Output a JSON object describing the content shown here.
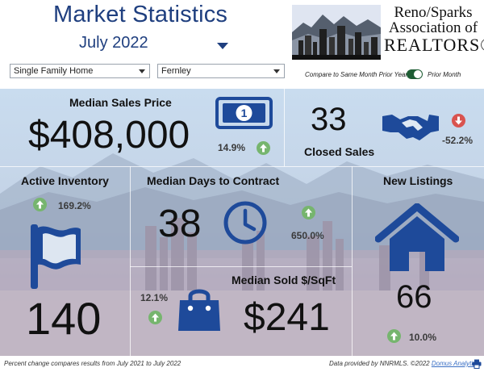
{
  "header": {
    "title": "Market Statistics",
    "month": "July 2022",
    "logo": {
      "line1": "Reno/Sparks",
      "line2": "Association of",
      "line3": "REALTORS®"
    }
  },
  "filters": {
    "property_type": "Single Family Home",
    "area": "Fernley"
  },
  "toggle": {
    "left_label": "Compare to Same Month Prior Year",
    "right_label": "Prior Month",
    "state": "on"
  },
  "metrics": {
    "median_sales_price": {
      "label": "Median Sales Price",
      "value": "$408,000",
      "change": "14.9%",
      "direction": "up",
      "icon": "money-bill-icon"
    },
    "closed_sales": {
      "label": "Closed Sales",
      "value": "33",
      "change": "-52.2%",
      "direction": "down",
      "icon": "handshake-icon"
    },
    "active_inventory": {
      "label": "Active Inventory",
      "value": "140",
      "change": "169.2%",
      "direction": "up",
      "icon": "flag-icon"
    },
    "median_days_to_contract": {
      "label": "Median Days to Contract",
      "value": "38",
      "change": "650.0%",
      "direction": "up",
      "icon": "clock-icon"
    },
    "new_listings": {
      "label": "New Listings",
      "value": "66",
      "change": "10.0%",
      "direction": "up",
      "icon": "house-icon"
    },
    "median_sold_per_sqft": {
      "label": "Median Sold $/SqFt",
      "value": "$241",
      "change": "12.1%",
      "direction": "up",
      "icon": "shopping-bag-icon"
    }
  },
  "footer": {
    "note": "Percent change compares results from July 2021 to July 2022",
    "credit": "Data provided by NNRMLS. ©2022 ",
    "credit_link": "Domus Analytics"
  },
  "colors": {
    "brand_blue": "#1f3f7f",
    "icon_blue": "#1e4a9a",
    "up_green": "#76b56e",
    "down_red": "#d9534f",
    "toggle_green": "#1e5d34"
  }
}
